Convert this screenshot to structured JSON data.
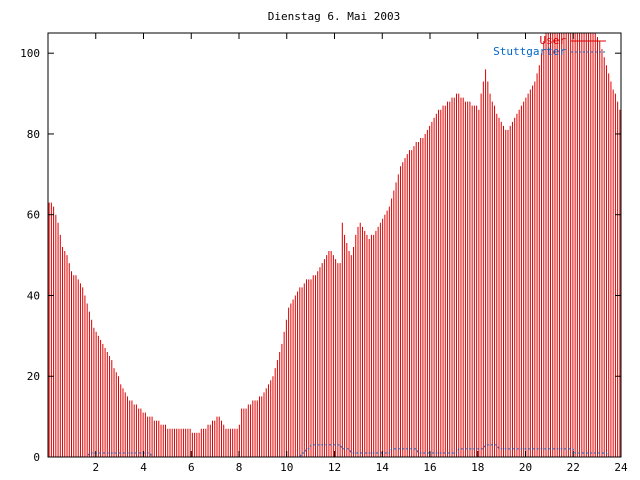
{
  "chart_data": {
    "type": "bar",
    "title": "Dienstag 6. Mai 2003",
    "xlabel": "",
    "ylabel": "",
    "xlim": [
      0,
      24
    ],
    "ylim": [
      0,
      105
    ],
    "x_ticks": [
      "2",
      "4",
      "6",
      "8",
      "10",
      "12",
      "14",
      "16",
      "18",
      "20",
      "22",
      "24"
    ],
    "y_ticks": [
      "0",
      "20",
      "40",
      "60",
      "80",
      "100"
    ],
    "grid": false,
    "legend_position": "top-right",
    "sample_interval_hours": 0.0833,
    "series": [
      {
        "name": "User",
        "color": "#dd0000",
        "style": "impulses",
        "values": [
          63,
          63,
          62,
          60,
          58,
          55,
          52,
          51,
          50,
          48,
          46,
          45,
          45,
          44,
          43,
          42,
          40,
          38,
          36,
          34,
          32,
          31,
          30,
          29,
          28,
          27,
          26,
          25,
          24,
          22,
          21,
          20,
          18,
          17,
          16,
          15,
          14,
          14,
          13,
          13,
          12,
          12,
          11,
          11,
          10,
          10,
          10,
          9,
          9,
          9,
          8,
          8,
          8,
          7,
          7,
          7,
          7,
          7,
          7,
          7,
          7,
          7,
          7,
          7,
          6,
          6,
          6,
          6,
          7,
          7,
          7,
          8,
          8,
          9,
          9,
          10,
          10,
          9,
          8,
          7,
          7,
          7,
          7,
          7,
          7,
          8,
          12,
          12,
          12,
          13,
          13,
          14,
          14,
          14,
          15,
          15,
          16,
          17,
          18,
          19,
          20,
          22,
          24,
          26,
          28,
          31,
          34,
          37,
          38,
          39,
          40,
          41,
          42,
          42,
          43,
          44,
          44,
          44,
          45,
          45,
          46,
          47,
          48,
          49,
          50,
          51,
          51,
          50,
          49,
          48,
          48,
          58,
          55,
          53,
          51,
          50,
          52,
          55,
          57,
          58,
          57,
          56,
          55,
          54,
          55,
          55,
          56,
          57,
          58,
          59,
          60,
          61,
          62,
          64,
          66,
          68,
          70,
          72,
          73,
          74,
          75,
          76,
          76,
          77,
          78,
          78,
          79,
          79,
          80,
          81,
          82,
          83,
          84,
          85,
          86,
          86,
          87,
          87,
          88,
          88,
          89,
          89,
          90,
          90,
          89,
          89,
          88,
          88,
          88,
          87,
          87,
          87,
          86,
          90,
          93,
          96,
          93,
          90,
          88,
          87,
          85,
          84,
          83,
          82,
          81,
          81,
          82,
          83,
          84,
          85,
          86,
          87,
          88,
          89,
          90,
          91,
          92,
          93,
          95,
          97,
          100,
          103,
          105,
          105,
          105,
          105,
          105,
          105,
          105,
          105,
          105,
          105,
          105,
          105,
          105,
          105,
          105,
          105,
          105,
          105,
          105,
          105,
          105,
          105,
          105,
          104,
          103,
          101,
          99,
          97,
          95,
          93,
          91,
          90,
          88,
          86
        ]
      },
      {
        "name": "Stuttgarter",
        "color": "#0066cc",
        "style": "lines",
        "values": [
          0,
          0,
          0,
          0,
          0,
          0,
          0,
          0,
          0,
          0,
          0,
          0,
          0,
          0,
          0,
          0,
          0,
          0,
          1,
          1,
          1,
          1,
          1,
          1,
          1,
          1,
          1,
          1,
          1,
          1,
          1,
          1,
          1,
          1,
          1,
          1,
          1,
          1,
          1,
          1,
          1,
          1,
          1,
          1,
          1,
          1,
          0,
          0,
          0,
          0,
          0,
          0,
          0,
          0,
          0,
          0,
          0,
          0,
          0,
          0,
          0,
          0,
          0,
          0,
          0,
          0,
          0,
          0,
          0,
          0,
          0,
          0,
          0,
          0,
          0,
          0,
          0,
          0,
          0,
          0,
          0,
          0,
          0,
          0,
          0,
          0,
          0,
          0,
          0,
          0,
          0,
          0,
          0,
          0,
          0,
          0,
          0,
          0,
          0,
          0,
          0,
          0,
          0,
          0,
          0,
          0,
          0,
          0,
          0,
          0,
          0,
          0,
          0,
          1,
          1,
          2,
          2,
          3,
          3,
          3,
          3,
          3,
          3,
          3,
          3,
          3,
          3,
          3,
          3,
          3,
          3,
          2,
          2,
          2,
          2,
          1,
          1,
          1,
          1,
          1,
          1,
          1,
          1,
          1,
          1,
          1,
          1,
          1,
          1,
          1,
          1,
          1,
          1,
          2,
          2,
          2,
          2,
          2,
          2,
          2,
          2,
          2,
          2,
          2,
          2,
          1,
          1,
          1,
          1,
          1,
          1,
          1,
          1,
          1,
          1,
          1,
          1,
          1,
          1,
          1,
          1,
          1,
          1,
          2,
          2,
          2,
          2,
          2,
          2,
          2,
          2,
          2,
          2,
          2,
          2,
          3,
          3,
          3,
          3,
          3,
          3,
          2,
          2,
          2,
          2,
          2,
          2,
          2,
          2,
          2,
          2,
          2,
          2,
          2,
          2,
          2,
          2,
          2,
          2,
          2,
          2,
          2,
          2,
          2,
          2,
          2,
          2,
          2,
          2,
          2,
          2,
          2,
          2,
          2,
          2,
          1,
          1,
          1,
          1,
          1,
          1,
          1,
          1,
          1,
          1,
          1,
          1,
          1,
          1,
          1,
          0,
          0,
          0
        ]
      }
    ]
  }
}
